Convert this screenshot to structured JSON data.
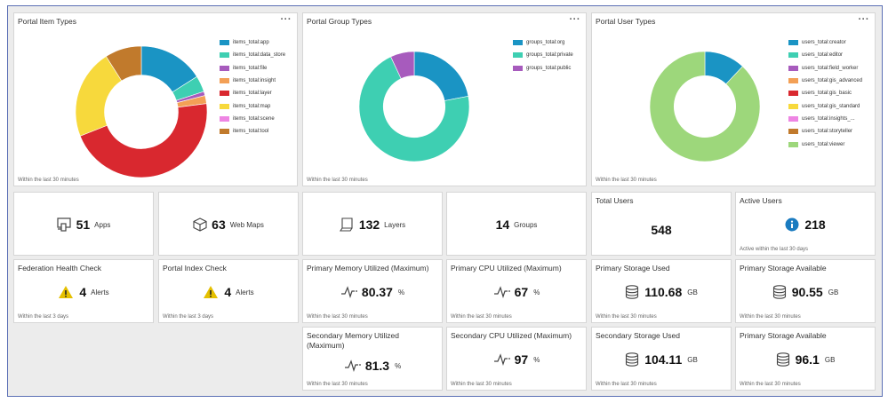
{
  "donuts": {
    "items": {
      "title": "Portal Item Types",
      "menu": "···",
      "footer": "Within the last 30 minutes",
      "legend": [
        {
          "label": "items_total:app",
          "color": "#1a94c4"
        },
        {
          "label": "items_total:data_store",
          "color": "#3ecfb2"
        },
        {
          "label": "items_total:file",
          "color": "#a75bbd"
        },
        {
          "label": "items_total:insight",
          "color": "#f3a056"
        },
        {
          "label": "items_total:layer",
          "color": "#d9282f"
        },
        {
          "label": "items_total:map",
          "color": "#f7d93c"
        },
        {
          "label": "items_total:scene",
          "color": "#ee85e3"
        },
        {
          "label": "items_total:tool",
          "color": "#c17a2c"
        }
      ],
      "values": [
        16,
        4,
        1,
        2,
        46,
        22,
        0,
        9
      ]
    },
    "groups": {
      "title": "Portal Group Types",
      "menu": "···",
      "footer": "Within the last 30 minutes",
      "legend": [
        {
          "label": "groups_total:org",
          "color": "#1a94c4"
        },
        {
          "label": "groups_total:private",
          "color": "#3ecfb2"
        },
        {
          "label": "groups_total:public",
          "color": "#a75bbd"
        }
      ],
      "values": [
        22,
        71,
        7
      ]
    },
    "users": {
      "title": "Portal User Types",
      "menu": "···",
      "footer": "Within the last 30 minutes",
      "legend": [
        {
          "label": "users_total:creator",
          "color": "#1a94c4"
        },
        {
          "label": "users_total:editor",
          "color": "#3ecfb2"
        },
        {
          "label": "users_total:field_worker",
          "color": "#a75bbd"
        },
        {
          "label": "users_total:gis_advanced",
          "color": "#f3a056"
        },
        {
          "label": "users_total:gis_basic",
          "color": "#d9282f"
        },
        {
          "label": "users_total:gis_standard",
          "color": "#f7d93c"
        },
        {
          "label": "users_total:insights_...",
          "color": "#ee85e3"
        },
        {
          "label": "users_total:storyteller",
          "color": "#c17a2c"
        },
        {
          "label": "users_total:viewer",
          "color": "#9dd77b"
        }
      ],
      "values": [
        12,
        0,
        0,
        0,
        0,
        0,
        0,
        0,
        88
      ]
    }
  },
  "counts": {
    "apps": {
      "value": "51",
      "label": "Apps",
      "icon": "app-icon"
    },
    "webmaps": {
      "value": "63",
      "label": "Web Maps",
      "icon": "cube-icon"
    },
    "layers": {
      "value": "132",
      "label": "Layers",
      "icon": "layer-icon"
    },
    "groups": {
      "value": "14",
      "label": "Groups"
    }
  },
  "total_users": {
    "title": "Total Users",
    "value": "548"
  },
  "active_users": {
    "title": "Active Users",
    "value": "218",
    "footer": "Active within the last 30 days",
    "icon": "info-icon"
  },
  "federation": {
    "title": "Federation Health Check",
    "value": "4",
    "label": "Alerts",
    "footer": "Within the last 3 days",
    "icon": "warning-icon"
  },
  "index_check": {
    "title": "Portal Index Check",
    "value": "4",
    "label": "Alerts",
    "footer": "Within the last 3 days",
    "icon": "warning-icon"
  },
  "metrics": {
    "prim_mem": {
      "title": "Primary Memory Utilized (Maximum)",
      "value": "80.37",
      "unit": "%",
      "footer": "Within the last 30 minutes"
    },
    "prim_cpu": {
      "title": "Primary CPU Utilized (Maximum)",
      "value": "67",
      "unit": "%",
      "footer": "Within the last 30 minutes"
    },
    "prim_storage": {
      "title": "Primary Storage Used",
      "value": "110.68",
      "unit": "GB",
      "footer": "Within the last 30 minutes"
    },
    "prim_avail": {
      "title": "Primary Storage Available",
      "value": "90.55",
      "unit": "GB",
      "footer": "Within the last 30 minutes"
    },
    "sec_mem": {
      "title": "Secondary Memory Utilized (Maximum)",
      "value": "81.3",
      "unit": "%",
      "footer": "Within the last 30 minutes"
    },
    "sec_cpu": {
      "title": "Secondary CPU Utilized (Maximum)",
      "value": "97",
      "unit": "%",
      "footer": "Within the last 30 minutes"
    },
    "sec_storage": {
      "title": "Secondary Storage Used",
      "value": "104.11",
      "unit": "GB",
      "footer": "Within the last 30 minutes"
    },
    "sec_avail": {
      "title": "Primary Storage Available",
      "value": "96.1",
      "unit": "GB",
      "footer": "Within the last 30 minutes"
    }
  },
  "icons": {
    "activity": "pulse-icon",
    "database": "database-icon"
  },
  "colors": {
    "info": "#1a7bc0",
    "warning": "#e5c000",
    "border": "#5b6fb5"
  }
}
